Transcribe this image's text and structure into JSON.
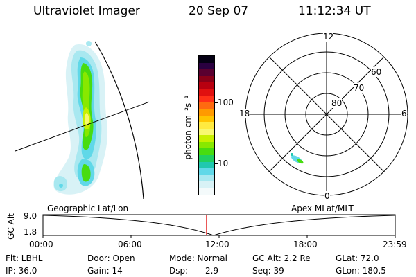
{
  "header": {
    "instrument": "Ultraviolet Imager",
    "date": "20 Sep 07",
    "time": "11:12:34 UT"
  },
  "colorbar": {
    "unit_label": "photon cm⁻²s⁻¹",
    "ticks": [
      "100",
      "10"
    ],
    "colors": [
      "#050014",
      "#2a0040",
      "#5a0030",
      "#8a0018",
      "#b80010",
      "#e01010",
      "#ff3018",
      "#ff6a10",
      "#ff9a00",
      "#ffc400",
      "#ffea40",
      "#f8f870",
      "#c8f000",
      "#88e800",
      "#48dc10",
      "#20d060",
      "#20c8b0",
      "#60d8e8",
      "#a8e8f0",
      "#d8f2f6",
      "#f4fafb"
    ]
  },
  "polar_plot": {
    "mlt_labels": {
      "top": "12",
      "left": "18",
      "right": "6",
      "bottom": "0"
    },
    "lat_labels": [
      "60",
      "70",
      "80"
    ]
  },
  "timeline": {
    "left_label": "Geographic Lat/Lon",
    "right_label": "Apex  MLat/MLT",
    "y_axis_title": "GC Alt",
    "y_ticks": [
      "9.0",
      "1.8"
    ],
    "x_ticks": [
      "00:00",
      "06:00",
      "12:00",
      "18:00",
      "23:59"
    ],
    "current_marker_time": "11:12:34"
  },
  "status": {
    "filter": "Flt: LBHL",
    "ip": "IP: 36.0",
    "door": "Door: Open",
    "gain": "Gain: 14",
    "mode": "Mode: Normal",
    "dsp_label": "Dsp:",
    "dsp_value": "2.9",
    "gc_alt": "GC Alt: 2.2 Re",
    "seq": "Seq: 39",
    "glat": "GLat:  72.0",
    "glon": "GLon: 180.5"
  }
}
